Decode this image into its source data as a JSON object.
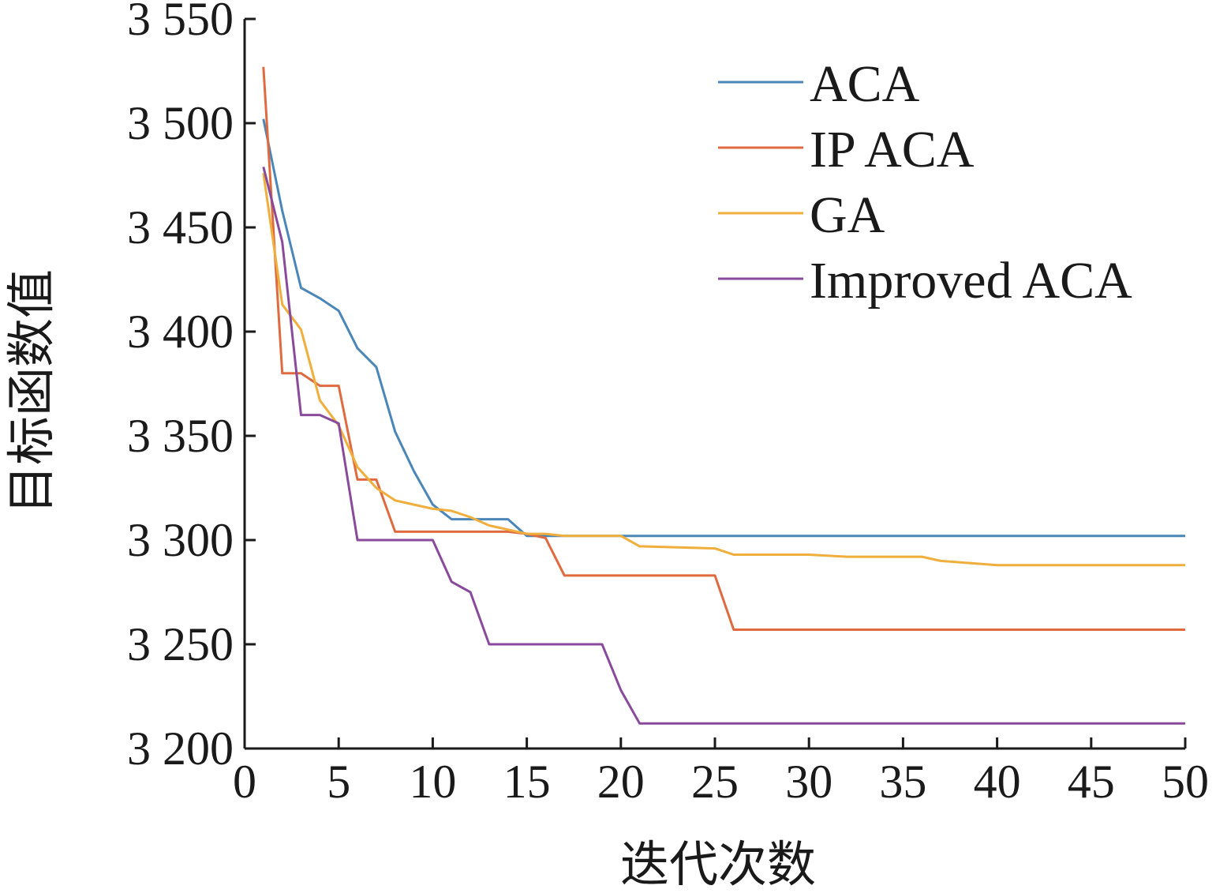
{
  "chart_data": {
    "type": "line",
    "xlabel": "迭代次数",
    "ylabel": "目标函数值",
    "xlim": [
      0,
      50
    ],
    "ylim": [
      3200,
      3550
    ],
    "xticks": [
      0,
      5,
      10,
      15,
      20,
      25,
      30,
      35,
      40,
      45,
      50
    ],
    "xtick_labels": [
      "0",
      "5",
      "10",
      "15",
      "20",
      "25",
      "30",
      "35",
      "40",
      "45",
      "50"
    ],
    "yticks": [
      3200,
      3250,
      3300,
      3350,
      3400,
      3450,
      3500,
      3550
    ],
    "ytick_labels": [
      "3 200",
      "3 250",
      "3 300",
      "3 350",
      "3 400",
      "3 450",
      "3 500",
      "3 550"
    ],
    "grid": false,
    "legend_position": "top-right",
    "series": [
      {
        "name": "ACA",
        "color": "#4a86b8",
        "x": [
          1,
          2,
          3,
          4,
          5,
          6,
          7,
          8,
          9,
          10,
          11,
          12,
          13,
          14,
          15,
          16,
          20,
          30,
          40,
          50
        ],
        "y": [
          3502,
          3458,
          3421,
          3416,
          3410,
          3392,
          3383,
          3352,
          3333,
          3317,
          3310,
          3310,
          3310,
          3310,
          3302,
          3302,
          3302,
          3302,
          3302,
          3302
        ]
      },
      {
        "name": "IP ACA",
        "color": "#e06a3f",
        "x": [
          1,
          2,
          3,
          4,
          5,
          6,
          7,
          8,
          9,
          10,
          11,
          12,
          13,
          14,
          15,
          16,
          17,
          20,
          25,
          26,
          30,
          40,
          50
        ],
        "y": [
          3527,
          3380,
          3380,
          3374,
          3374,
          3329,
          3329,
          3304,
          3304,
          3304,
          3304,
          3304,
          3304,
          3304,
          3303,
          3301,
          3283,
          3283,
          3283,
          3257,
          3257,
          3257,
          3257
        ]
      },
      {
        "name": "GA",
        "color": "#f0ae3c",
        "x": [
          1,
          2,
          3,
          4,
          5,
          6,
          7,
          8,
          9,
          10,
          11,
          12,
          13,
          14,
          15,
          16,
          17,
          20,
          21,
          25,
          26,
          30,
          32,
          36,
          37,
          40,
          50
        ],
        "y": [
          3476,
          3413,
          3401,
          3367,
          3355,
          3335,
          3325,
          3319,
          3317,
          3315,
          3314,
          3311,
          3307,
          3305,
          3303,
          3303,
          3302,
          3302,
          3297,
          3296,
          3293,
          3293,
          3292,
          3292,
          3290,
          3288,
          3288
        ]
      },
      {
        "name": "Improved ACA",
        "color": "#8a4a9c",
        "x": [
          1,
          2,
          3,
          4,
          5,
          6,
          7,
          8,
          9,
          10,
          11,
          12,
          13,
          14,
          15,
          16,
          17,
          18,
          19,
          20,
          21,
          25,
          30,
          40,
          50
        ],
        "y": [
          3479,
          3443,
          3360,
          3360,
          3356,
          3300,
          3300,
          3300,
          3300,
          3300,
          3280,
          3275,
          3250,
          3250,
          3250,
          3250,
          3250,
          3250,
          3250,
          3228,
          3212,
          3212,
          3212,
          3212,
          3212
        ]
      }
    ]
  }
}
